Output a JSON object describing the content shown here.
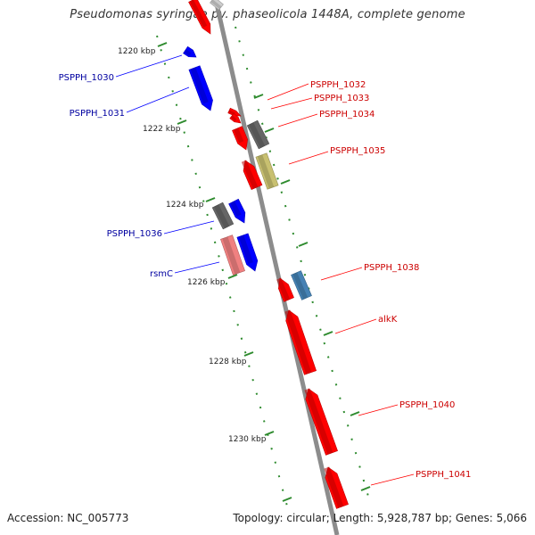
{
  "title": "Pseudomonas syringae pv. phaseolicola 1448A, complete genome",
  "footer": {
    "accession": "Accession: NC_005773",
    "summary": "Topology: circular; Length: 5,928,787 bp; Genes: 5,066"
  },
  "colors": {
    "backbone": "#8c8c8c",
    "ticks": "#2e8b2e",
    "red": "#ff0000",
    "blue": "#0000ff",
    "gray": "#666666",
    "olive": "#c8c070",
    "pink": "#f08080",
    "steel": "#4682b4",
    "red_label": "#cc0000",
    "blue_label": "#0000a0"
  },
  "scale_labels": [
    "1220 kbp",
    "1222 kbp",
    "1224 kbp",
    "1226 kbp",
    "1228 kbp",
    "1230 kbp"
  ],
  "gene_labels_left": [
    "PSPPH_1030",
    "PSPPH_1031",
    "PSPPH_1036",
    "rsmC"
  ],
  "gene_labels_right": [
    "PSPPH_1032",
    "PSPPH_1033",
    "PSPPH_1034",
    "PSPPH_1035",
    "PSPPH_1038",
    "alkK",
    "PSPPH_1040",
    "PSPPH_1041"
  ]
}
